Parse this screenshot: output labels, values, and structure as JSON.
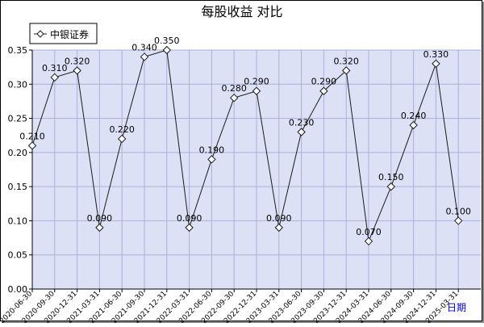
{
  "chart_data": {
    "type": "line",
    "title": "每股收益  对比",
    "xlabel": "日期",
    "ylabel": "",
    "ylim": [
      0,
      0.35
    ],
    "yticks": [
      "0.00",
      "0.05",
      "0.10",
      "0.15",
      "0.20",
      "0.25",
      "0.30",
      "0.35"
    ],
    "grid": true,
    "legend_position": "top-left",
    "categories": [
      "2020-06-30",
      "2020-09-30",
      "2020-12-31",
      "2021-03-31",
      "2021-06-30",
      "2021-09-30",
      "2021-12-31",
      "2022-03-31",
      "2022-06-30",
      "2022-09-30",
      "2022-12-31",
      "2023-03-31",
      "2023-06-30",
      "2023-09-30",
      "2023-12-31",
      "2024-03-31",
      "2024-06-30",
      "2024-09-30",
      "2024-12-31",
      "2025-03-31"
    ],
    "series": [
      {
        "name": "中银证券",
        "values": [
          0.21,
          0.31,
          0.32,
          0.09,
          0.22,
          0.34,
          0.35,
          0.09,
          0.19,
          0.28,
          0.29,
          0.09,
          0.23,
          0.29,
          0.32,
          0.07,
          0.15,
          0.24,
          0.33,
          0.1
        ],
        "value_labels": [
          "0.210",
          "0.310",
          "0.320",
          "0.090",
          "0.220",
          "0.340",
          "0.350",
          "0.090",
          "0.190",
          "0.280",
          "0.290",
          "0.090",
          "0.230",
          "0.290",
          "0.320",
          "0.070",
          "0.150",
          "0.240",
          "0.330",
          "0.100"
        ]
      }
    ],
    "colors": {
      "plot_background": "#dde1f6",
      "grid": "#aab0d8",
      "line": "#1a1a1a",
      "marker_fill": "#ffffff",
      "frame": "#000000"
    }
  }
}
